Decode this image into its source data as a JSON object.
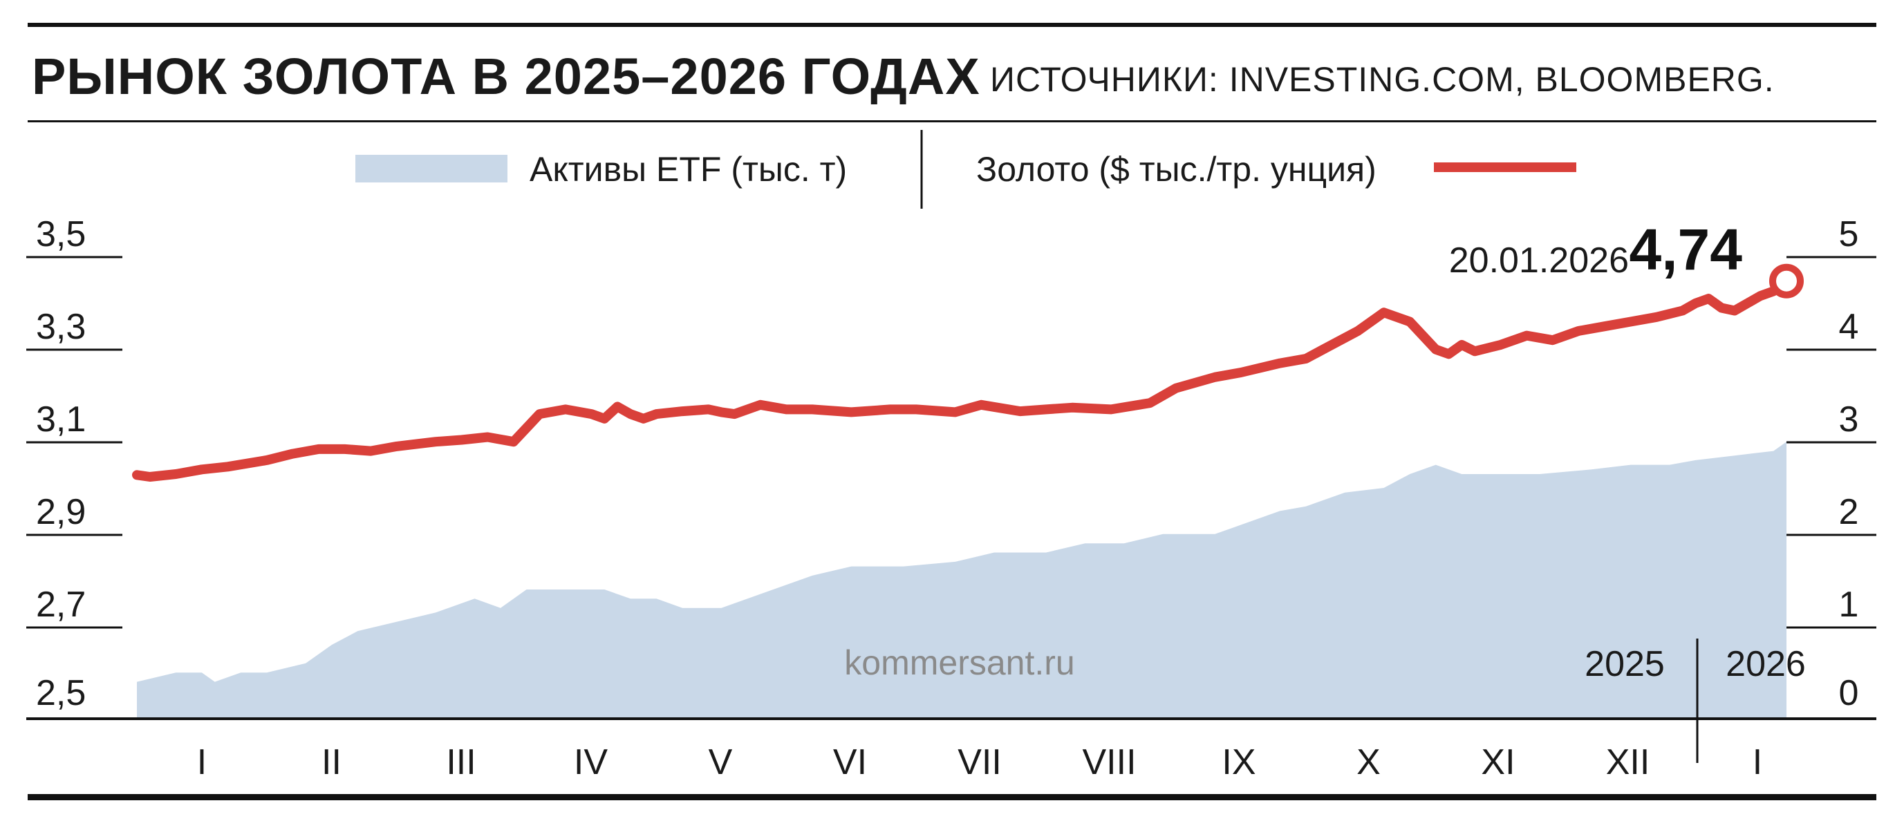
{
  "header": {
    "title": "РЫНОК ЗОЛОТА В 2025–2026 ГОДАХ",
    "source": "ИСТОЧНИКИ: INVESTING.COM, BLOOMBERG."
  },
  "watermark": "kommersant.ru",
  "colors": {
    "gold": "#d9403a",
    "etf": "#c9d8e8",
    "text": "#1a1a1a"
  },
  "chart_data": {
    "type": "line+area",
    "title": "РЫНОК ЗОЛОТА В 2025–2026 ГОДАХ",
    "legend": {
      "etf": "Активы ETF (тыс. т)",
      "gold": "Золото ($ тыс./тр. унция)"
    },
    "left_axis": {
      "label": "Активы ETF (тыс. т)",
      "ticks": [
        "3,5",
        "3,3",
        "3,1",
        "2,9",
        "2,7",
        "2,5"
      ],
      "range": [
        2.5,
        3.5
      ]
    },
    "right_axis": {
      "label": "Золото ($ тыс./тр. унция)",
      "ticks": [
        "5",
        "4",
        "3",
        "2",
        "1",
        "0"
      ],
      "range": [
        0,
        5
      ]
    },
    "x_months": [
      "I",
      "II",
      "III",
      "IV",
      "V",
      "VI",
      "VII",
      "VIII",
      "IX",
      "X",
      "XI",
      "XII",
      "I"
    ],
    "years": [
      "2025",
      "2026"
    ],
    "annotation": {
      "date": "20.01.2026",
      "value": "4,74"
    },
    "gold_series": {
      "name": "Золото ($ тыс./тр. унция)",
      "t": [
        0,
        0.1,
        0.3,
        0.5,
        0.7,
        1.0,
        1.2,
        1.4,
        1.6,
        1.8,
        2.0,
        2.3,
        2.5,
        2.7,
        2.9,
        3.0,
        3.1,
        3.3,
        3.5,
        3.6,
        3.7,
        3.8,
        3.9,
        4.0,
        4.2,
        4.4,
        4.5,
        4.6,
        4.8,
        5.0,
        5.2,
        5.5,
        5.8,
        6.0,
        6.3,
        6.5,
        6.8,
        7.0,
        7.2,
        7.5,
        7.8,
        8.0,
        8.3,
        8.5,
        8.8,
        9.0,
        9.2,
        9.4,
        9.6,
        9.8,
        10.0,
        10.1,
        10.2,
        10.3,
        10.5,
        10.7,
        10.9,
        11.1,
        11.3,
        11.5,
        11.7,
        11.9,
        12.0,
        12.1,
        12.2,
        12.3,
        12.4,
        12.5,
        12.6,
        12.7
      ],
      "values": [
        2.64,
        2.62,
        2.65,
        2.7,
        2.73,
        2.8,
        2.87,
        2.92,
        2.92,
        2.9,
        2.95,
        3.0,
        3.02,
        3.05,
        3.0,
        3.15,
        3.3,
        3.35,
        3.3,
        3.25,
        3.38,
        3.3,
        3.25,
        3.3,
        3.33,
        3.35,
        3.32,
        3.3,
        3.4,
        3.35,
        3.35,
        3.32,
        3.35,
        3.35,
        3.32,
        3.4,
        3.33,
        3.35,
        3.37,
        3.35,
        3.42,
        3.58,
        3.7,
        3.75,
        3.85,
        3.9,
        4.05,
        4.2,
        4.4,
        4.3,
        4.0,
        3.95,
        4.05,
        3.98,
        4.05,
        4.15,
        4.1,
        4.2,
        4.25,
        4.3,
        4.35,
        4.42,
        4.5,
        4.55,
        4.45,
        4.42,
        4.5,
        4.58,
        4.63,
        4.74
      ]
    },
    "etf_series": {
      "name": "Активы ETF (тыс. т)",
      "t": [
        0,
        0.3,
        0.5,
        0.6,
        0.8,
        1.0,
        1.3,
        1.5,
        1.7,
        2.0,
        2.3,
        2.6,
        2.8,
        3.0,
        3.4,
        3.6,
        3.8,
        4.0,
        4.2,
        4.5,
        4.8,
        5.2,
        5.5,
        5.9,
        6.3,
        6.6,
        7.0,
        7.3,
        7.6,
        7.9,
        8.3,
        8.6,
        8.8,
        9.0,
        9.3,
        9.6,
        9.8,
        10.0,
        10.2,
        10.5,
        10.8,
        11.2,
        11.5,
        11.8,
        12.0,
        12.3,
        12.6,
        12.7
      ],
      "values": [
        2.58,
        2.6,
        2.6,
        2.58,
        2.6,
        2.6,
        2.62,
        2.66,
        2.69,
        2.71,
        2.73,
        2.76,
        2.74,
        2.78,
        2.78,
        2.78,
        2.76,
        2.76,
        2.74,
        2.74,
        2.77,
        2.81,
        2.83,
        2.83,
        2.84,
        2.86,
        2.86,
        2.88,
        2.88,
        2.9,
        2.9,
        2.93,
        2.95,
        2.96,
        2.99,
        3.0,
        3.03,
        3.05,
        3.03,
        3.03,
        3.03,
        3.04,
        3.05,
        3.05,
        3.06,
        3.07,
        3.08,
        3.1
      ]
    }
  }
}
